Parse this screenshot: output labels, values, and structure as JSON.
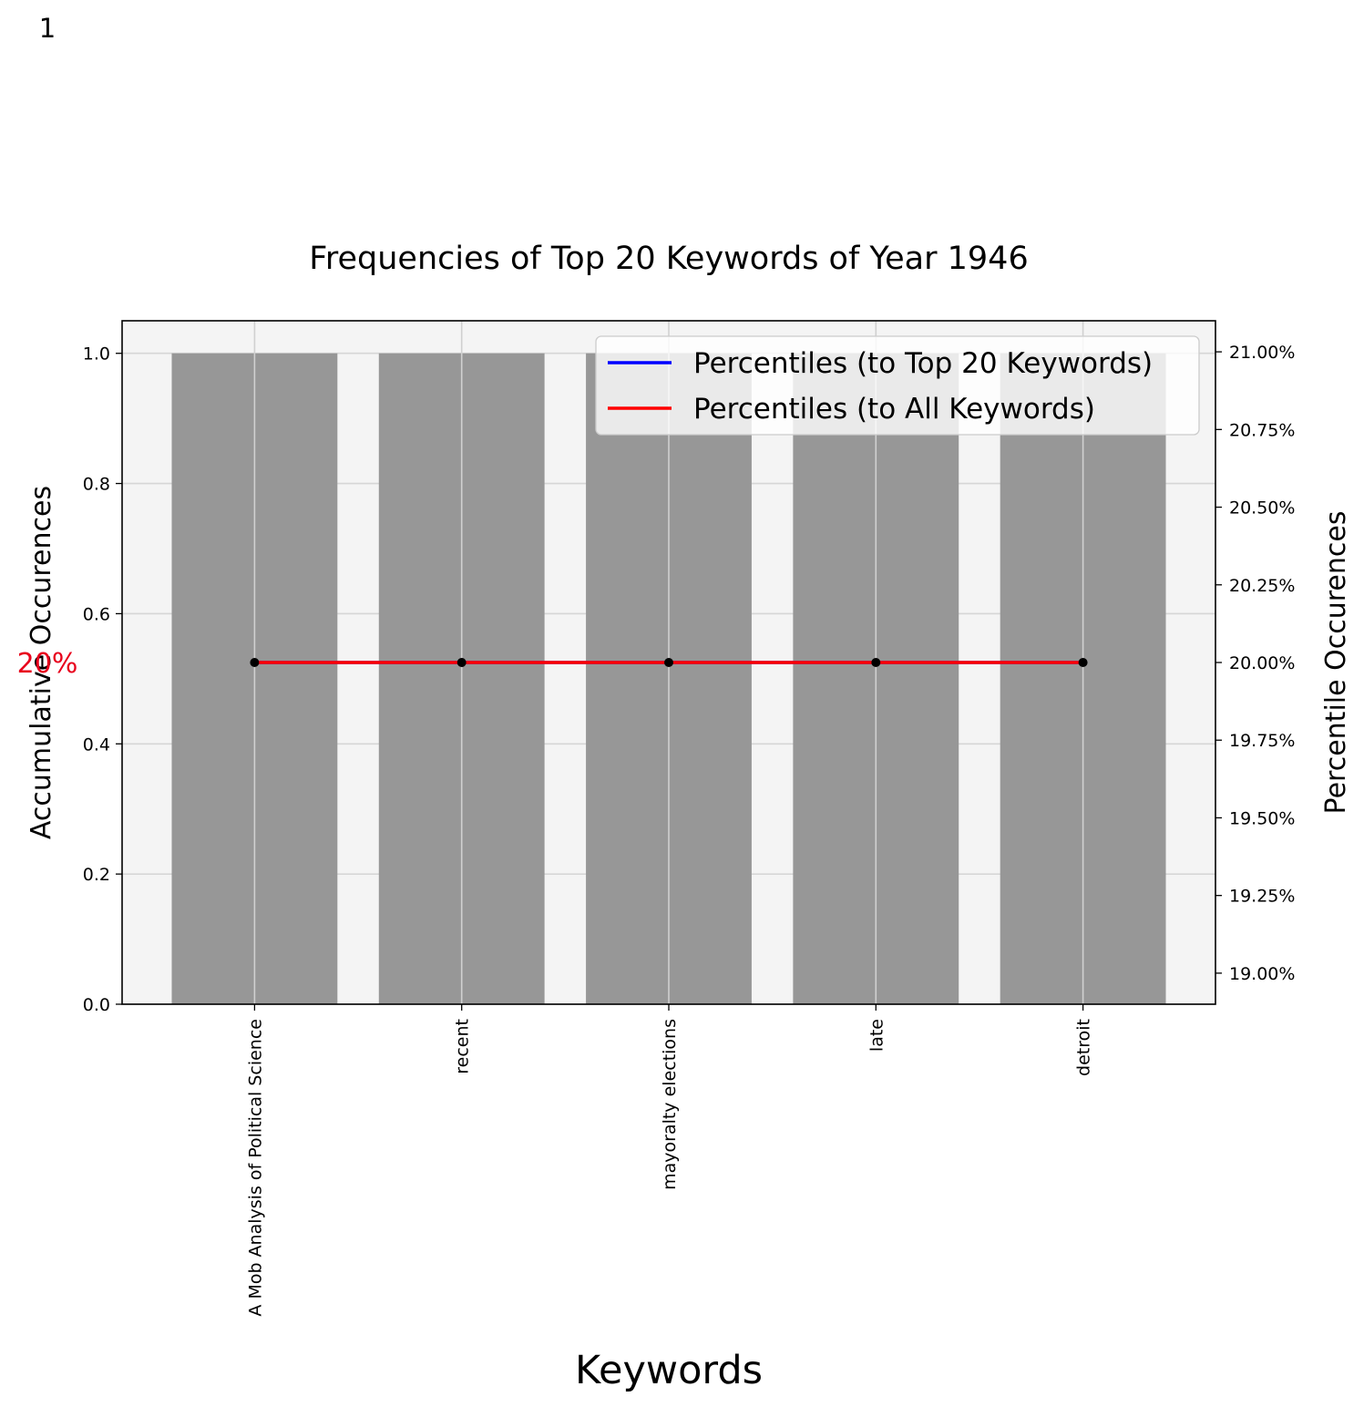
{
  "page_number": "1",
  "chart_data": {
    "type": "bar",
    "title": "Frequencies of Top 20 Keywords of Year 1946",
    "xlabel": "Keywords",
    "ylabel": "Accumulative Occurences",
    "y2label": "Percentile Occurences",
    "categories": [
      "A Mob Analysis of Political Science",
      "recent",
      "mayoralty elections",
      "late",
      "detroit"
    ],
    "values": [
      1,
      1,
      1,
      1,
      1
    ],
    "ylim": [
      0,
      1.05
    ],
    "yticks": [
      "0.0",
      "0.2",
      "0.4",
      "0.6",
      "0.8",
      "1.0"
    ],
    "y2lim": [
      18.9,
      21.1
    ],
    "y2ticks": [
      "19.00%",
      "19.25%",
      "19.50%",
      "19.75%",
      "20.00%",
      "20.25%",
      "20.50%",
      "20.75%",
      "21.00%"
    ],
    "series": [
      {
        "name": "Percentiles (to Top 20 Keywords)",
        "values": [
          20,
          20,
          20,
          20,
          20
        ],
        "color": "#0000ff"
      },
      {
        "name": "Percentiles (to All Keywords)",
        "values": [
          20,
          20,
          20,
          20,
          20
        ],
        "color": "#ff0000"
      }
    ],
    "annotation": "20%",
    "annotation_color": "#e8001c",
    "bar_color": "#979797",
    "plot_background": "#f4f4f4",
    "marker_color": "#000000",
    "grid": true,
    "legend_position": "top-right"
  }
}
